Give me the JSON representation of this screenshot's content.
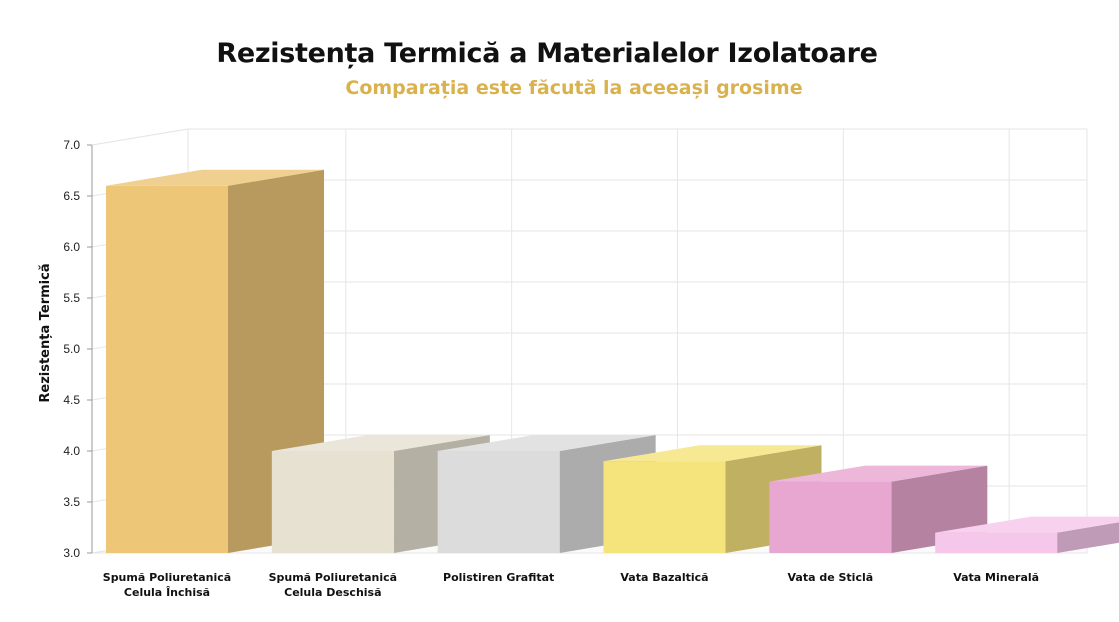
{
  "colors": {
    "subtitle": "#d9b24e",
    "grid": "#e6e6e6",
    "axis": "#999999"
  },
  "chart_data": {
    "type": "bar",
    "title": "Rezistența Termică a Materialelor Izolatoare",
    "subtitle": "Comparația este făcută la aceeași grosime",
    "ylabel": "Rezistența Termică",
    "xlabel": "",
    "ylim": [
      3.0,
      7.0
    ],
    "yticks": [
      "3.0",
      "3.5",
      "4.0",
      "4.5",
      "5.0",
      "5.5",
      "6.0",
      "6.5",
      "7.0"
    ],
    "grid": true,
    "categories": [
      [
        "Spumă Poliuretanică",
        "Celula Închisă"
      ],
      [
        "Spumă Poliuretanică",
        "Celula Deschisă"
      ],
      [
        "Polistiren Grafitat"
      ],
      [
        "Vata Bazaltică"
      ],
      [
        "Vata de Sticlă"
      ],
      [
        "Vata Minerală"
      ]
    ],
    "values": [
      6.6,
      4.0,
      4.0,
      3.9,
      3.7,
      3.2
    ],
    "bar_colors": [
      "#edc678",
      "#e7e1d2",
      "#dcdcdc",
      "#f5e37c",
      "#e8a7d0",
      "#f5c7ea"
    ]
  }
}
